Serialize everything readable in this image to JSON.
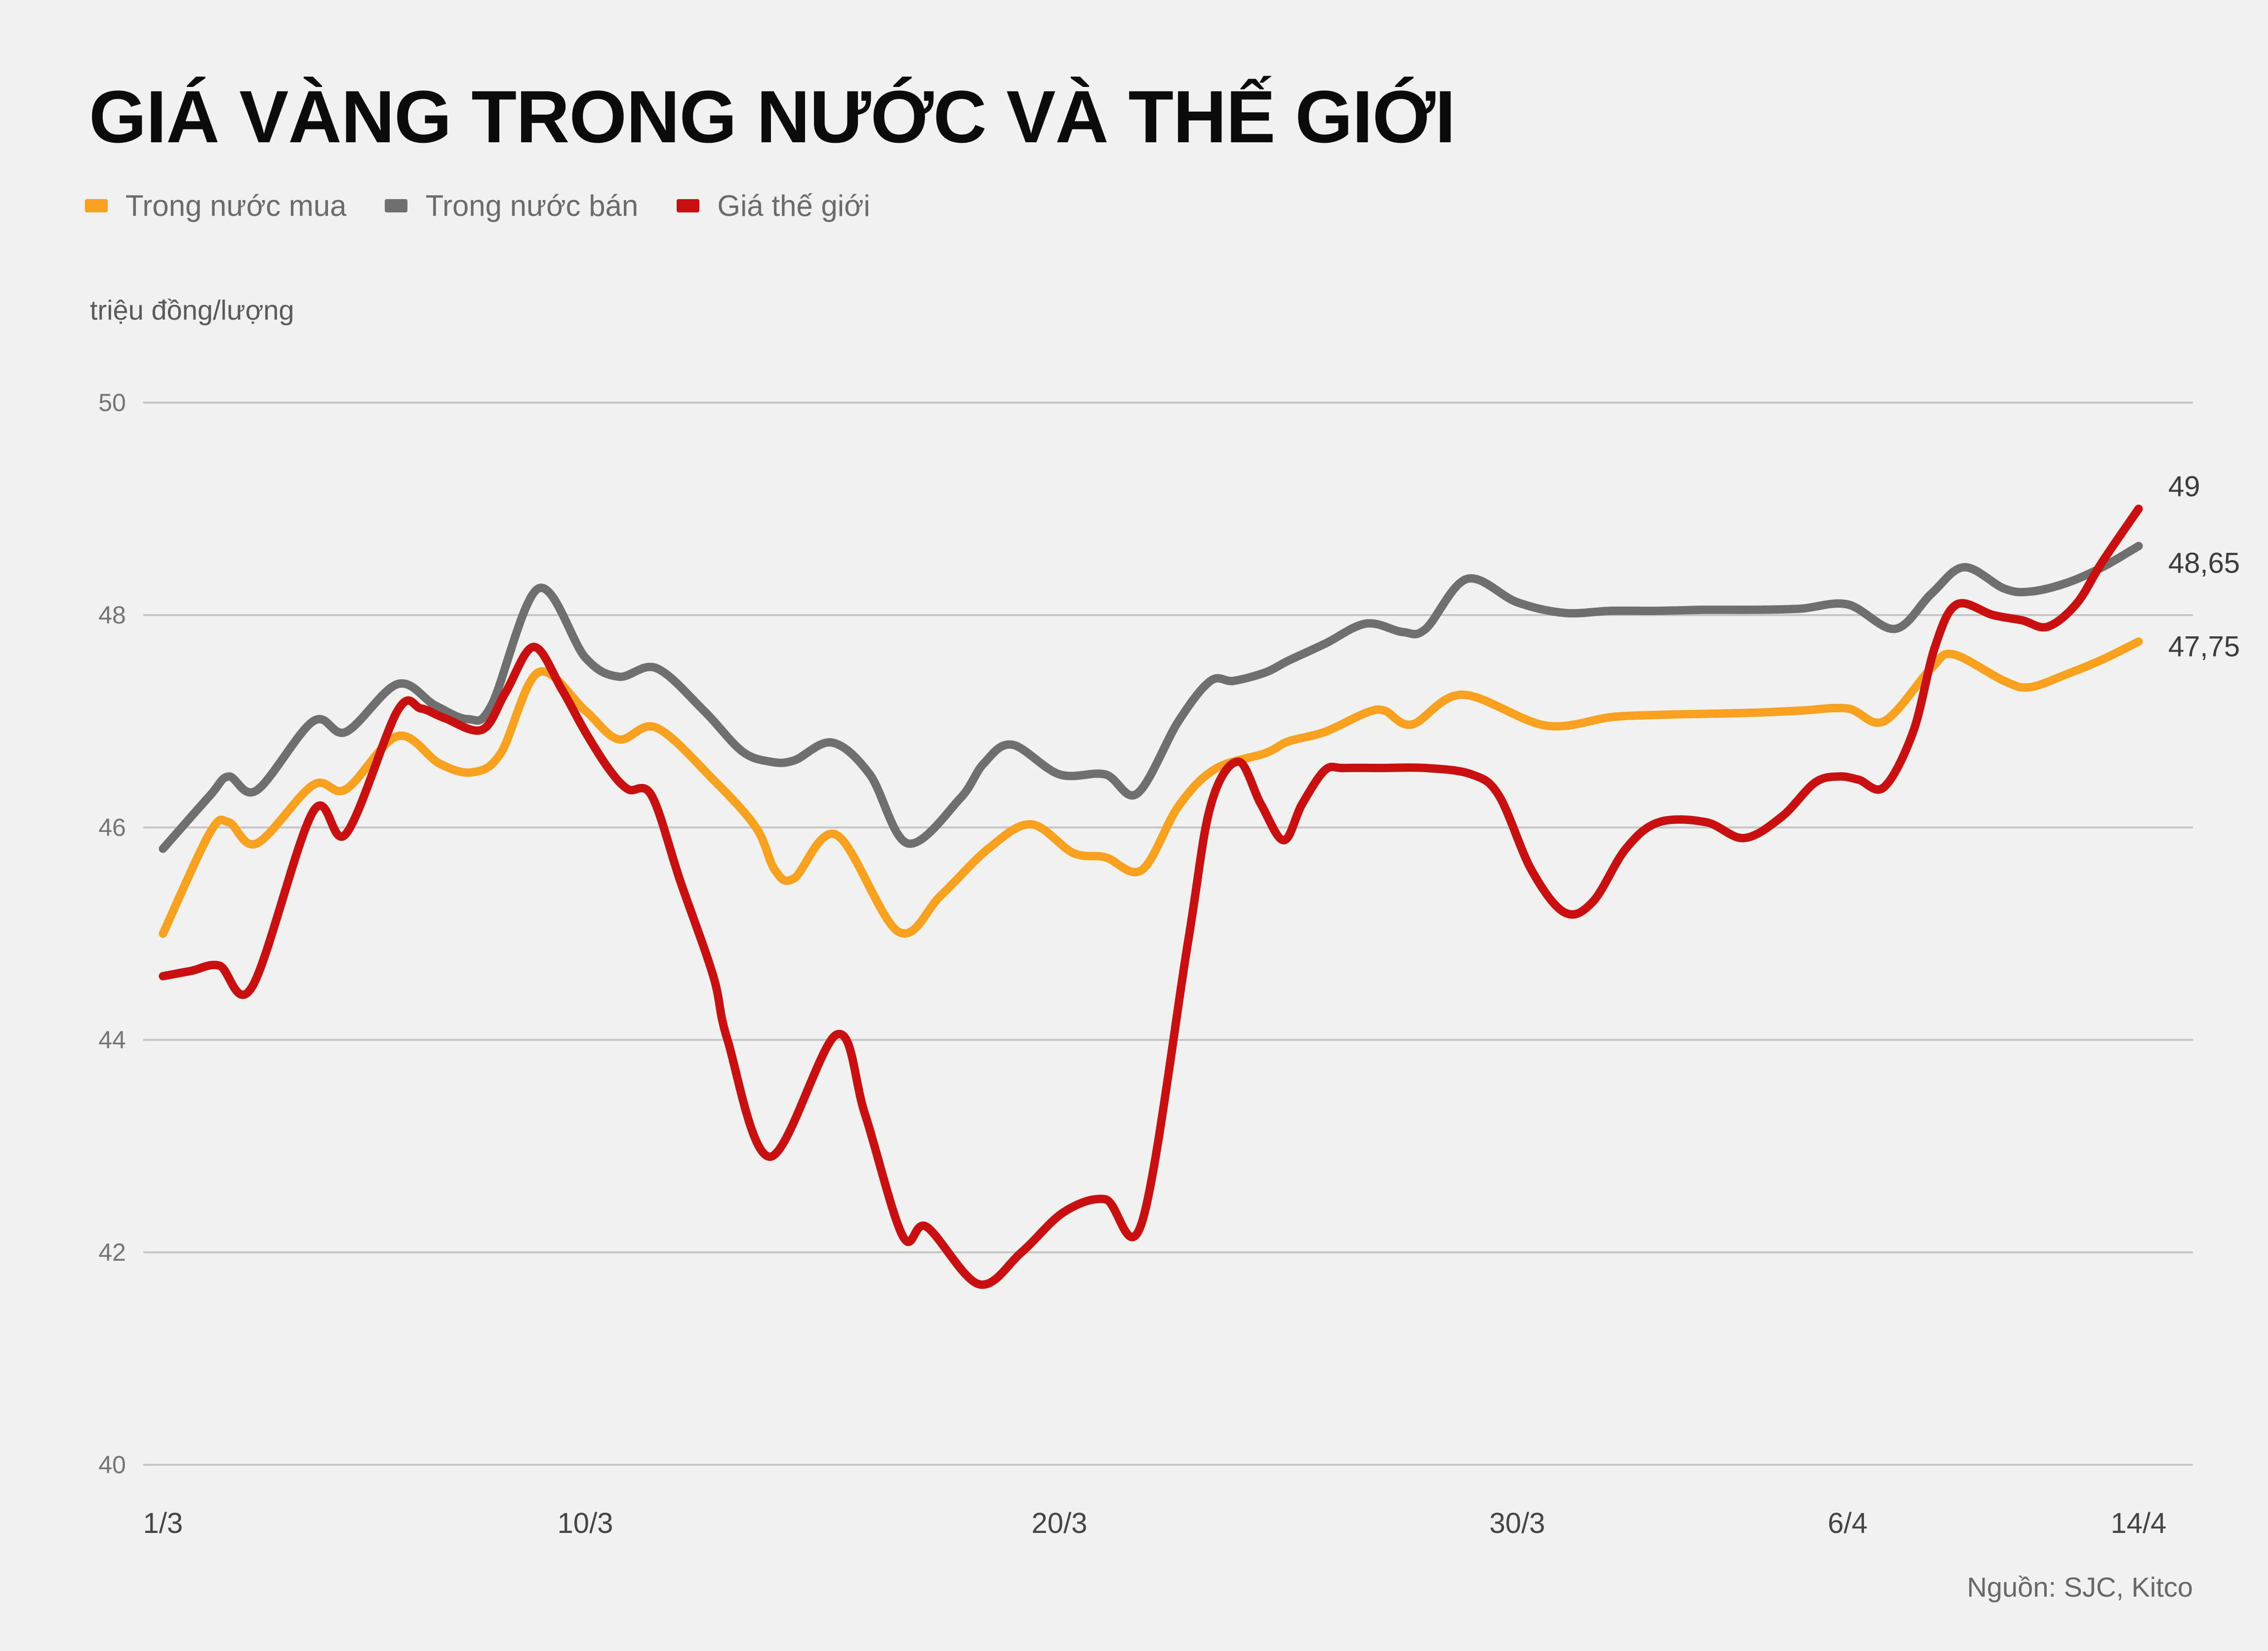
{
  "title": "GIÁ VÀNG TRONG NƯỚC VÀ THẾ GIỚI",
  "unit_label": "triệu đồng/lượng",
  "source": "Nguồn: SJC, Kitco",
  "legend": {
    "items": [
      {
        "label": "Trong nước mua",
        "color": "#F8A11E"
      },
      {
        "label": "Trong nước bán",
        "color": "#6F6F6F"
      },
      {
        "label": "Giá thế giới",
        "color": "#C90F0F"
      }
    ]
  },
  "end_labels": [
    {
      "text": "49",
      "value": 49.0,
      "series": "Giá thế giới"
    },
    {
      "text": "48,65",
      "value": 48.65,
      "series": "Trong nước bán"
    },
    {
      "text": "47,75",
      "value": 47.75,
      "series": "Trong nước mua"
    }
  ],
  "colors": {
    "background": "#f1f1f0",
    "gridline": "#c6c6c6",
    "title": "#0b0b0b",
    "axis_text": "#757575"
  },
  "chart_data": {
    "type": "line",
    "title": "GIÁ VÀNG TRONG NƯỚC VÀ THẾ GIỚI",
    "ylabel": "triệu đồng/lượng",
    "xlabel": "",
    "ylim": [
      40,
      50
    ],
    "y_ticks": [
      50,
      48,
      46,
      44,
      42,
      40
    ],
    "grid": "horizontal",
    "legend_position": "top",
    "x_unit": "days since 1/3 (t); span 1/3 to 14/4",
    "x_tick_labels": [
      "1/3",
      "10/3",
      "20/3",
      "30/3",
      "6/4",
      "14/4"
    ],
    "x_tick_t": [
      0,
      9,
      19,
      29,
      36,
      44
    ],
    "series": [
      {
        "name": "Trong nước bán",
        "color_key": 1,
        "end_value_label": "48,65",
        "points": [
          [
            0,
            45.8
          ],
          [
            1,
            46.3
          ],
          [
            1.4,
            46.48
          ],
          [
            2,
            46.35
          ],
          [
            3.2,
            47.0
          ],
          [
            3.9,
            46.9
          ],
          [
            5,
            47.35
          ],
          [
            5.8,
            47.15
          ],
          [
            6.5,
            47.02
          ],
          [
            7,
            47.15
          ],
          [
            8,
            48.25
          ],
          [
            9,
            47.6
          ],
          [
            9.7,
            47.42
          ],
          [
            10.5,
            47.5
          ],
          [
            11.5,
            47.1
          ],
          [
            12.3,
            46.72
          ],
          [
            12.9,
            46.62
          ],
          [
            13.4,
            46.63
          ],
          [
            14.2,
            46.8
          ],
          [
            15,
            46.5
          ],
          [
            15.8,
            45.85
          ],
          [
            16.9,
            46.27
          ],
          [
            17.4,
            46.6
          ],
          [
            18,
            46.78
          ],
          [
            19,
            46.5
          ],
          [
            20,
            46.5
          ],
          [
            20.7,
            46.32
          ],
          [
            21.6,
            47.0
          ],
          [
            22.3,
            47.38
          ],
          [
            22.8,
            47.38
          ],
          [
            23.5,
            47.46
          ],
          [
            24,
            47.57
          ],
          [
            24.8,
            47.73
          ],
          [
            25.7,
            47.92
          ],
          [
            26.5,
            47.84
          ],
          [
            27,
            47.87
          ],
          [
            27.9,
            48.34
          ],
          [
            29,
            48.12
          ],
          [
            30,
            48.02
          ],
          [
            31,
            48.04
          ],
          [
            32,
            48.04
          ],
          [
            33,
            48.05
          ],
          [
            34,
            48.05
          ],
          [
            35,
            48.06
          ],
          [
            36,
            48.1
          ],
          [
            37.3,
            47.87
          ],
          [
            38.3,
            48.2
          ],
          [
            39.2,
            48.45
          ],
          [
            40.3,
            48.25
          ],
          [
            41,
            48.22
          ],
          [
            42,
            48.3
          ],
          [
            43,
            48.45
          ],
          [
            44,
            48.65
          ]
        ]
      },
      {
        "name": "Trong nước mua",
        "color_key": 0,
        "end_value_label": "47,75",
        "points": [
          [
            0,
            45.0
          ],
          [
            1,
            45.95
          ],
          [
            1.4,
            46.05
          ],
          [
            2,
            45.85
          ],
          [
            3.2,
            46.4
          ],
          [
            3.9,
            46.36
          ],
          [
            5,
            46.86
          ],
          [
            5.9,
            46.6
          ],
          [
            6.6,
            46.52
          ],
          [
            7.2,
            46.7
          ],
          [
            8,
            47.46
          ],
          [
            9,
            47.1
          ],
          [
            9.7,
            46.83
          ],
          [
            10.5,
            46.94
          ],
          [
            11.7,
            46.45
          ],
          [
            12.6,
            46.0
          ],
          [
            13,
            45.6
          ],
          [
            13.4,
            45.52
          ],
          [
            14.3,
            45.93
          ],
          [
            15.6,
            45.02
          ],
          [
            16.5,
            45.36
          ],
          [
            17.5,
            45.8
          ],
          [
            18.4,
            46.03
          ],
          [
            19.3,
            45.76
          ],
          [
            20,
            45.72
          ],
          [
            20.8,
            45.6
          ],
          [
            21.6,
            46.2
          ],
          [
            22.4,
            46.55
          ],
          [
            23.5,
            46.7
          ],
          [
            24,
            46.81
          ],
          [
            24.8,
            46.9
          ],
          [
            25.7,
            47.08
          ],
          [
            26.1,
            47.1
          ],
          [
            26.7,
            46.97
          ],
          [
            27.8,
            47.25
          ],
          [
            29.6,
            46.96
          ],
          [
            31,
            47.04
          ],
          [
            32,
            47.06
          ],
          [
            33,
            47.07
          ],
          [
            34,
            47.08
          ],
          [
            35,
            47.1
          ],
          [
            36,
            47.12
          ],
          [
            37,
            47.0
          ],
          [
            38.3,
            47.5
          ],
          [
            38.9,
            47.63
          ],
          [
            40.3,
            47.38
          ],
          [
            41,
            47.32
          ],
          [
            42,
            47.44
          ],
          [
            43,
            47.58
          ],
          [
            44,
            47.75
          ]
        ]
      },
      {
        "name": "Giá thế giới",
        "color_key": 2,
        "end_value_label": "49",
        "points": [
          [
            0,
            44.6
          ],
          [
            0.6,
            44.65
          ],
          [
            1.2,
            44.7
          ],
          [
            1.9,
            44.5
          ],
          [
            3.2,
            46.15
          ],
          [
            3.9,
            45.94
          ],
          [
            5,
            47.1
          ],
          [
            5.5,
            47.12
          ],
          [
            6,
            47.03
          ],
          [
            6.8,
            46.92
          ],
          [
            7.3,
            47.27
          ],
          [
            7.9,
            47.7
          ],
          [
            8.5,
            47.3
          ],
          [
            9,
            46.9
          ],
          [
            9.5,
            46.55
          ],
          [
            9.9,
            46.36
          ],
          [
            10.4,
            46.3
          ],
          [
            11,
            45.5
          ],
          [
            11.7,
            44.6
          ],
          [
            12,
            44.0
          ],
          [
            12.9,
            42.9
          ],
          [
            14.3,
            44.05
          ],
          [
            14.9,
            43.3
          ],
          [
            15.7,
            42.15
          ],
          [
            16.2,
            42.24
          ],
          [
            17.3,
            41.7
          ],
          [
            18.2,
            42.0
          ],
          [
            19.1,
            42.38
          ],
          [
            20,
            42.5
          ],
          [
            20.8,
            42.28
          ],
          [
            21.8,
            44.9
          ],
          [
            22.3,
            46.2
          ],
          [
            22.9,
            46.62
          ],
          [
            23.4,
            46.22
          ],
          [
            23.9,
            45.88
          ],
          [
            24.3,
            46.22
          ],
          [
            24.8,
            46.54
          ],
          [
            25.2,
            46.56
          ],
          [
            26,
            46.56
          ],
          [
            27,
            46.56
          ],
          [
            28,
            46.5
          ],
          [
            28.6,
            46.3
          ],
          [
            29.3,
            45.6
          ],
          [
            30,
            45.2
          ],
          [
            30.6,
            45.3
          ],
          [
            31.3,
            45.8
          ],
          [
            32,
            46.05
          ],
          [
            33,
            46.05
          ],
          [
            33.8,
            45.9
          ],
          [
            34.6,
            46.1
          ],
          [
            35.3,
            46.42
          ],
          [
            35.8,
            46.48
          ],
          [
            36.3,
            46.45
          ],
          [
            37,
            46.38
          ],
          [
            37.8,
            46.9
          ],
          [
            38.4,
            47.7
          ],
          [
            39,
            48.1
          ],
          [
            40,
            48.0
          ],
          [
            40.8,
            47.95
          ],
          [
            41.5,
            47.89
          ],
          [
            42.3,
            48.11
          ],
          [
            43,
            48.5
          ],
          [
            44,
            49.0
          ]
        ]
      }
    ]
  }
}
